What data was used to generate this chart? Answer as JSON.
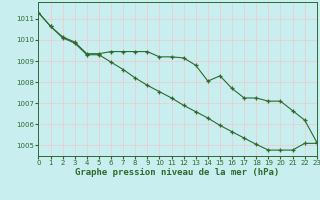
{
  "bg_color": "#c8eef0",
  "grid_color": "#f0c8c8",
  "line_color": "#2d6a2d",
  "x_min": 0,
  "x_max": 23,
  "y_min": 1004.5,
  "y_max": 1011.8,
  "series1_x": [
    0,
    1,
    2,
    3,
    4,
    5,
    6,
    7,
    8,
    9,
    10,
    11,
    12,
    13,
    14,
    15,
    16,
    17,
    18,
    19,
    20,
    21,
    22,
    23
  ],
  "series1_y": [
    1011.3,
    1010.65,
    1010.15,
    1009.9,
    1009.35,
    1009.35,
    1009.45,
    1009.45,
    1009.45,
    1009.45,
    1009.2,
    1009.2,
    1009.15,
    1008.8,
    1008.05,
    1008.3,
    1007.7,
    1007.25,
    1007.25,
    1007.1,
    1007.1,
    1006.65,
    1006.2,
    1005.15
  ],
  "series2_x": [
    0,
    1,
    2,
    3,
    4,
    5,
    6,
    7,
    8,
    9,
    10,
    11,
    12,
    13,
    14,
    15,
    16,
    17,
    18,
    19,
    20,
    21,
    22,
    23
  ],
  "series2_y": [
    1011.3,
    1010.65,
    1010.1,
    1009.85,
    1009.3,
    1009.3,
    1008.95,
    1008.6,
    1008.2,
    1007.85,
    1007.55,
    1007.25,
    1006.9,
    1006.6,
    1006.3,
    1005.95,
    1005.65,
    1005.35,
    1005.05,
    1004.78,
    1004.78,
    1004.78,
    1005.1,
    1005.1
  ],
  "xlabel": "Graphe pression niveau de la mer (hPa)",
  "y_ticks": [
    1005,
    1006,
    1007,
    1008,
    1009,
    1010,
    1011
  ],
  "x_ticks": [
    0,
    1,
    2,
    3,
    4,
    5,
    6,
    7,
    8,
    9,
    10,
    11,
    12,
    13,
    14,
    15,
    16,
    17,
    18,
    19,
    20,
    21,
    22,
    23
  ],
  "tick_labelsize": 5,
  "xlabel_fontsize": 6.5,
  "lw": 0.8,
  "marker_size": 3.0
}
